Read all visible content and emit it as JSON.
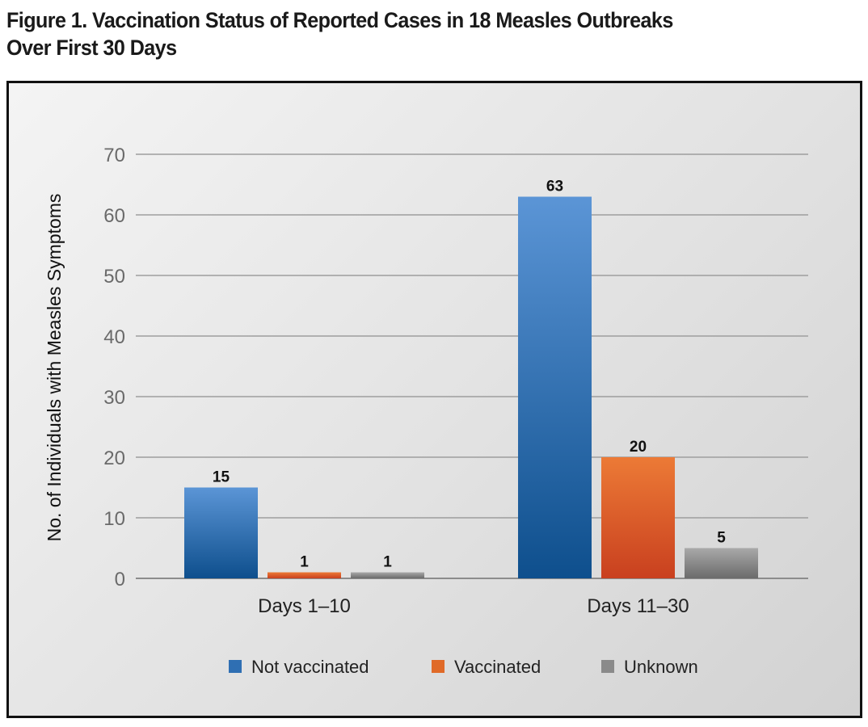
{
  "figure": {
    "title_line1": "Figure 1. Vaccination Status of Reported Cases in 18 Measles Outbreaks",
    "title_line2": "Over First 30 Days"
  },
  "chart_data": {
    "type": "bar",
    "title": "Figure 1. Vaccination Status of Reported Cases in 18 Measles Outbreaks Over First 30 Days",
    "xlabel": "",
    "ylabel": "No. of Individuals with Measles Symptoms",
    "categories": [
      "Days 1–10",
      "Days 11–30"
    ],
    "series": [
      {
        "name": "Not vaccinated",
        "values": [
          15,
          63
        ],
        "color": "#2f6fb3"
      },
      {
        "name": "Vaccinated",
        "values": [
          1,
          20
        ],
        "color": "#e06a28"
      },
      {
        "name": "Unknown",
        "values": [
          1,
          5
        ],
        "color": "#8a8a8a"
      }
    ],
    "ylim": [
      0,
      70
    ],
    "yticks": [
      0,
      10,
      20,
      30,
      40,
      50,
      60,
      70
    ],
    "grid": true,
    "legend_position": "bottom",
    "data_labels": true
  }
}
